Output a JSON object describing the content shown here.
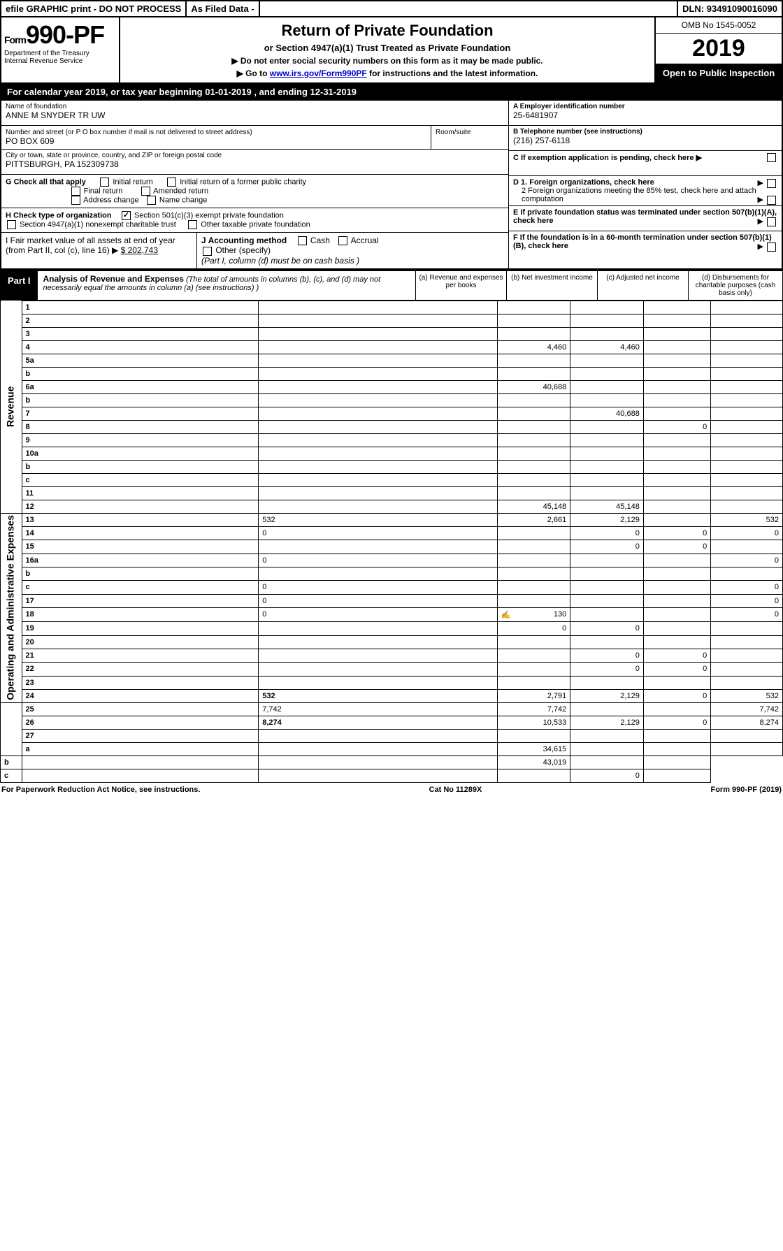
{
  "top_bar": {
    "efile": "efile GRAPHIC print - DO NOT PROCESS",
    "filed": "As Filed Data -",
    "dln_label": "DLN:",
    "dln_value": "93491090016090"
  },
  "header": {
    "form_prefix": "Form",
    "form_number": "990-PF",
    "dept1": "Department of the Treasury",
    "dept2": "Internal Revenue Service",
    "title": "Return of Private Foundation",
    "subtitle": "or Section 4947(a)(1) Trust Treated as Private Foundation",
    "note1": "▶ Do not enter social security numbers on this form as it may be made public.",
    "note2_prefix": "▶ Go to ",
    "note2_link": "www.irs.gov/Form990PF",
    "note2_suffix": " for instructions and the latest information.",
    "omb": "OMB No 1545-0052",
    "year": "2019",
    "open": "Open to Public Inspection"
  },
  "cal_year": {
    "prefix": "For calendar year 2019, or tax year beginning ",
    "begin": "01-01-2019",
    "mid": " , and ending ",
    "end": "12-31-2019"
  },
  "info": {
    "name_label": "Name of foundation",
    "name": "ANNE M SNYDER TR UW",
    "ein_label": "A Employer identification number",
    "ein": "25-6481907",
    "addr_label": "Number and street (or P O  box number if mail is not delivered to street address)",
    "addr": "PO BOX 609",
    "room_label": "Room/suite",
    "phone_label": "B Telephone number (see instructions)",
    "phone": "(216) 257-6118",
    "city_label": "City or town, state or province, country, and ZIP or foreign postal code",
    "city": "PITTSBURGH, PA  152309738",
    "c_label": "C If exemption application is pending, check here ▶",
    "g_label": "G Check all that apply",
    "g_initial": "Initial return",
    "g_initial_former": "Initial return of a former public charity",
    "g_final": "Final return",
    "g_amended": "Amended return",
    "g_addr": "Address change",
    "g_name": "Name change",
    "d1": "D 1. Foreign organizations, check here",
    "d2": "2 Foreign organizations meeting the 85% test, check here and attach computation",
    "h_label": "H Check type of organization",
    "h_501c3": "Section 501(c)(3) exempt private foundation",
    "h_4947": "Section 4947(a)(1) nonexempt charitable trust",
    "h_other": "Other taxable private foundation",
    "e_label": "E If private foundation status was terminated under section 507(b)(1)(A), check here",
    "i_label": "I Fair market value of all assets at end of year (from Part II, col  (c), line 16) ▶",
    "i_value": "$  202,743",
    "j_label": "J Accounting method",
    "j_cash": "Cash",
    "j_accrual": "Accrual",
    "j_other": "Other (specify)",
    "j_note": "(Part I, column (d) must be on cash basis )",
    "f_label": "F If the foundation is in a 60-month termination under section 507(b)(1)(B), check here"
  },
  "part1": {
    "label": "Part I",
    "title": "Analysis of Revenue and Expenses",
    "desc": "(The total of amounts in columns (b), (c), and (d) may not necessarily equal the amounts in column (a) (see instructions) )",
    "col_a": "(a) Revenue and expenses per books",
    "col_b": "(b) Net investment income",
    "col_c": "(c) Adjusted net income",
    "col_d": "(d) Disbursements for charitable purposes (cash basis only)"
  },
  "side_labels": {
    "revenue": "Revenue",
    "expenses": "Operating and Administrative Expenses"
  },
  "rows": [
    {
      "n": "1",
      "d": "",
      "a": "",
      "b": "",
      "c": ""
    },
    {
      "n": "2",
      "d": "",
      "a": "",
      "b": "",
      "c": ""
    },
    {
      "n": "3",
      "d": "",
      "a": "",
      "b": "",
      "c": ""
    },
    {
      "n": "4",
      "d": "",
      "a": "4,460",
      "b": "4,460",
      "c": ""
    },
    {
      "n": "5a",
      "d": "",
      "a": "",
      "b": "",
      "c": ""
    },
    {
      "n": "b",
      "d": "",
      "a": "",
      "b": "",
      "c": ""
    },
    {
      "n": "6a",
      "d": "",
      "a": "40,688",
      "b": "",
      "c": ""
    },
    {
      "n": "b",
      "d": "",
      "a": "",
      "b": "",
      "c": ""
    },
    {
      "n": "7",
      "d": "",
      "a": "",
      "b": "40,688",
      "c": ""
    },
    {
      "n": "8",
      "d": "",
      "a": "",
      "b": "",
      "c": "0"
    },
    {
      "n": "9",
      "d": "",
      "a": "",
      "b": "",
      "c": ""
    },
    {
      "n": "10a",
      "d": "",
      "a": "",
      "b": "",
      "c": ""
    },
    {
      "n": "b",
      "d": "",
      "a": "",
      "b": "",
      "c": ""
    },
    {
      "n": "c",
      "d": "",
      "a": "",
      "b": "",
      "c": ""
    },
    {
      "n": "11",
      "d": "",
      "a": "",
      "b": "",
      "c": ""
    },
    {
      "n": "12",
      "d": "",
      "a": "45,148",
      "b": "45,148",
      "c": "",
      "bold": true
    },
    {
      "n": "13",
      "d": "532",
      "a": "2,661",
      "b": "2,129",
      "c": ""
    },
    {
      "n": "14",
      "d": "0",
      "a": "",
      "b": "0",
      "c": "0"
    },
    {
      "n": "15",
      "d": "",
      "a": "",
      "b": "0",
      "c": "0"
    },
    {
      "n": "16a",
      "d": "0",
      "a": "",
      "b": "",
      "c": ""
    },
    {
      "n": "b",
      "d": "",
      "a": "",
      "b": "",
      "c": ""
    },
    {
      "n": "c",
      "d": "0",
      "a": "",
      "b": "",
      "c": ""
    },
    {
      "n": "17",
      "d": "0",
      "a": "",
      "b": "",
      "c": ""
    },
    {
      "n": "18",
      "d": "0",
      "a": "130",
      "b": "",
      "c": "",
      "icon": true
    },
    {
      "n": "19",
      "d": "",
      "a": "0",
      "b": "0",
      "c": ""
    },
    {
      "n": "20",
      "d": "",
      "a": "",
      "b": "",
      "c": ""
    },
    {
      "n": "21",
      "d": "",
      "a": "",
      "b": "0",
      "c": "0"
    },
    {
      "n": "22",
      "d": "",
      "a": "",
      "b": "0",
      "c": "0"
    },
    {
      "n": "23",
      "d": "",
      "a": "",
      "b": "",
      "c": ""
    },
    {
      "n": "24",
      "d": "532",
      "a": "2,791",
      "b": "2,129",
      "c": "0",
      "bold": true
    },
    {
      "n": "25",
      "d": "7,742",
      "a": "7,742",
      "b": "",
      "c": ""
    },
    {
      "n": "26",
      "d": "8,274",
      "a": "10,533",
      "b": "2,129",
      "c": "0",
      "bold": true
    },
    {
      "n": "27",
      "d": "",
      "a": "",
      "b": "",
      "c": ""
    },
    {
      "n": "a",
      "d": "",
      "a": "34,615",
      "b": "",
      "c": "",
      "bold": true
    },
    {
      "n": "b",
      "d": "",
      "a": "",
      "b": "43,019",
      "c": "",
      "bold": true
    },
    {
      "n": "c",
      "d": "",
      "a": "",
      "b": "",
      "c": "0",
      "bold": true
    }
  ],
  "footer": {
    "left": "For Paperwork Reduction Act Notice, see instructions.",
    "center": "Cat No  11289X",
    "right": "Form 990-PF (2019)"
  },
  "colors": {
    "black": "#000000",
    "white": "#ffffff",
    "gray": "#d0d0d0",
    "link": "#0000cc"
  }
}
